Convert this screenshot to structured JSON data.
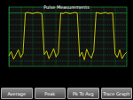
{
  "chart_data": {
    "type": "line",
    "title": "Pulse Measurements",
    "x": [
      0,
      2,
      4,
      6,
      8,
      10,
      12,
      14,
      16,
      18,
      20,
      22,
      24,
      26,
      28,
      30,
      32,
      34,
      36,
      38,
      40,
      42,
      44,
      46,
      48,
      50,
      52,
      54,
      56,
      58,
      60,
      62,
      64,
      66,
      68,
      70,
      72,
      74,
      76,
      78,
      80,
      82,
      84,
      86,
      88,
      90,
      92,
      94,
      96,
      98,
      100
    ],
    "values": [
      -72,
      -65,
      -78,
      -70,
      -62,
      -75,
      -68,
      0,
      1,
      0,
      -1,
      0,
      1,
      0,
      -1,
      -70,
      -64,
      -77,
      -69,
      -60,
      -74,
      -67,
      0,
      -1,
      1,
      0,
      -1,
      0,
      1,
      0,
      -73,
      -66,
      -79,
      -61,
      -71,
      -76,
      -64,
      1,
      0,
      -1,
      0,
      1,
      -1,
      0,
      0,
      -68,
      -75,
      -62,
      -77,
      -70,
      -66
    ],
    "color": "#f2e600",
    "xlim": [
      0,
      100
    ],
    "xticks": [
      0,
      10,
      20,
      30,
      40,
      50,
      60,
      70,
      80,
      90,
      100
    ],
    "ylim": [
      -90,
      10
    ],
    "yticks": [
      -90,
      -80,
      -70,
      -60,
      -50,
      -40,
      -30,
      -20,
      -10,
      0,
      10
    ],
    "grid": true,
    "tick_labels": false,
    "annotations": [
      "Average",
      "Peak",
      "Pk To Avg",
      "Trace Graph"
    ]
  }
}
